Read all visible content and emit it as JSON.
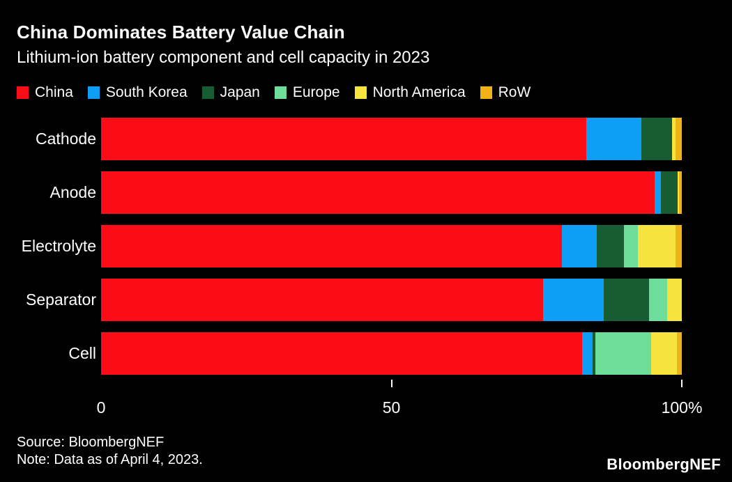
{
  "title": "China Dominates Battery Value Chain",
  "subtitle": "Lithium-ion battery component and cell capacity in 2023",
  "colors": {
    "background": "#000000",
    "text": "#ffffff",
    "china": "#fa0d16",
    "south_korea": "#0e9ef5",
    "japan": "#175c33",
    "europe": "#6edd99",
    "north_america": "#f7e33d",
    "row": "#f0b217"
  },
  "chart_data": {
    "type": "bar",
    "orientation": "horizontal",
    "stacked": true,
    "title": "China Dominates Battery Value Chain",
    "subtitle": "Lithium-ion battery component and cell capacity in 2023",
    "categories": [
      "Cathode",
      "Anode",
      "Electrolyte",
      "Separator",
      "Cell"
    ],
    "series": [
      {
        "name": "China",
        "color": "#fa0d16",
        "values": [
          83.6,
          95.3,
          79.4,
          76.1,
          82.8
        ]
      },
      {
        "name": "South Korea",
        "color": "#0e9ef5",
        "values": [
          9.4,
          1.1,
          6.0,
          10.4,
          1.8
        ]
      },
      {
        "name": "Japan",
        "color": "#175c33",
        "values": [
          5.3,
          2.9,
          4.6,
          7.8,
          0.5
        ]
      },
      {
        "name": "Europe",
        "color": "#6edd99",
        "values": [
          0,
          0,
          2.4,
          3.2,
          9.6
        ]
      },
      {
        "name": "North America",
        "color": "#f7e33d",
        "values": [
          0.6,
          0.2,
          6.5,
          2.5,
          4.5
        ]
      },
      {
        "name": "RoW",
        "color": "#f0b217",
        "values": [
          1.1,
          0.5,
          1.1,
          0,
          0.8
        ]
      }
    ],
    "xlabel": "",
    "ylabel": "",
    "xlim": [
      0,
      100
    ],
    "x_ticks": [
      {
        "value": 0,
        "label": "0",
        "tick": false
      },
      {
        "value": 50,
        "label": "50",
        "tick": true
      },
      {
        "value": 100,
        "label": "100%",
        "tick": true
      }
    ],
    "grid": false,
    "legend_position": "top"
  },
  "footer": {
    "source": "Source: BloombergNEF",
    "note": "Note: Data as of April 4, 2023.",
    "logo": "BloombergNEF"
  }
}
